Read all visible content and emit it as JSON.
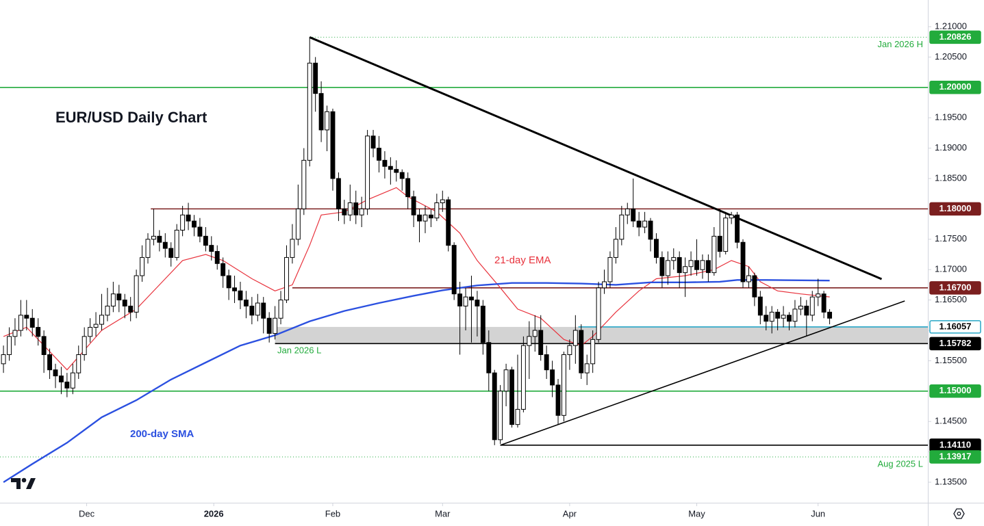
{
  "chart_data": {
    "type": "candlestick",
    "title": "EUR/USD Daily Chart",
    "xlim": [
      -0.6,
      160
    ],
    "ylim": [
      1.13162,
      1.21439
    ],
    "xticks": [
      {
        "value": 14.4,
        "label": "Dec"
      },
      {
        "value": 36.4,
        "label": "2026"
      },
      {
        "value": 57,
        "label": "Feb"
      },
      {
        "value": 76,
        "label": "Mar"
      },
      {
        "value": 98,
        "label": "Apr"
      },
      {
        "value": 120,
        "label": "May"
      },
      {
        "value": 141,
        "label": "Jun"
      }
    ],
    "yticks": [
      {
        "value": 1.135,
        "label": "1.13500"
      },
      {
        "value": 1.14,
        "label": "1.14000"
      },
      {
        "value": 1.145,
        "label": "1.14500"
      },
      {
        "value": 1.15,
        "label": "1.15000"
      },
      {
        "value": 1.155,
        "label": "1.15500"
      },
      {
        "value": 1.16,
        "label": "1.16000"
      },
      {
        "value": 1.165,
        "label": "1.16500"
      },
      {
        "value": 1.17,
        "label": "1.17000"
      },
      {
        "value": 1.175,
        "label": "1.17500"
      },
      {
        "value": 1.18,
        "label": "1.18000"
      },
      {
        "value": 1.185,
        "label": "1.18500"
      },
      {
        "value": 1.19,
        "label": "1.19000"
      },
      {
        "value": 1.195,
        "label": "1.19500"
      },
      {
        "value": 1.2,
        "label": "1.20000"
      },
      {
        "value": 1.205,
        "label": "1.20500"
      },
      {
        "value": 1.21,
        "label": "1.21000"
      }
    ],
    "up_color": "#ffffff",
    "down_color": "#000000",
    "open": [
      1.1545,
      1.156,
      1.159,
      1.16,
      1.1625,
      1.162,
      1.1605,
      1.159,
      1.156,
      1.1535,
      1.1525,
      1.1515,
      1.1505,
      1.153,
      1.156,
      1.159,
      1.1605,
      1.161,
      1.1625,
      1.164,
      1.166,
      1.165,
      1.164,
      1.163,
      1.169,
      1.172,
      1.175,
      1.1755,
      1.1745,
      1.1735,
      1.172,
      1.1765,
      1.179,
      1.178,
      1.177,
      1.1755,
      1.174,
      1.173,
      1.171,
      1.169,
      1.167,
      1.1665,
      1.165,
      1.164,
      1.1625,
      1.1645,
      1.162,
      1.1595,
      1.162,
      1.165,
      1.172,
      1.175,
      1.18,
      1.188,
      1.204,
      1.199,
      1.193,
      1.196,
      1.185,
      1.18,
      1.179,
      1.181,
      1.179,
      1.18,
      1.192,
      1.19,
      1.188,
      1.187,
      1.1865,
      1.186,
      1.185,
      1.182,
      1.179,
      1.178,
      1.179,
      1.1785,
      1.181,
      1.1815,
      1.174,
      1.166,
      1.164,
      1.1655,
      1.165,
      1.164,
      1.158,
      1.153,
      1.142,
      1.15,
      1.1535,
      1.1445,
      1.147,
      1.1575,
      1.159,
      1.16,
      1.156,
      1.1535,
      1.151,
      1.146,
      1.156,
      1.1575,
      1.16,
      1.153,
      1.1545,
      1.1585,
      1.167,
      1.168,
      1.172,
      1.175,
      1.179,
      1.18,
      1.178,
      1.177,
      1.178,
      1.175,
      1.172,
      1.169,
      1.1715,
      1.172,
      1.1695,
      1.1705,
      1.1715,
      1.17,
      1.1715,
      1.1695,
      1.1755,
      1.173,
      1.1785,
      1.179,
      1.1745,
      1.168,
      1.169,
      1.1655,
      1.1625,
      1.1615,
      1.163,
      1.162,
      1.1625,
      1.1615,
      1.1635,
      1.164,
      1.1625,
      1.1655,
      1.166,
      1.163
    ],
    "high": [
      1.1575,
      1.1605,
      1.162,
      1.165,
      1.165,
      1.1635,
      1.162,
      1.16,
      1.157,
      1.1545,
      1.154,
      1.153,
      1.1545,
      1.1575,
      1.1605,
      1.162,
      1.163,
      1.166,
      1.167,
      1.168,
      1.1675,
      1.166,
      1.1655,
      1.17,
      1.174,
      1.176,
      1.18,
      1.1765,
      1.176,
      1.1745,
      1.1775,
      1.1805,
      1.181,
      1.179,
      1.1785,
      1.177,
      1.1755,
      1.174,
      1.172,
      1.17,
      1.169,
      1.168,
      1.1665,
      1.1655,
      1.166,
      1.1655,
      1.163,
      1.164,
      1.1665,
      1.174,
      1.1775,
      1.184,
      1.19,
      1.2083,
      1.205,
      1.201,
      1.197,
      1.1965,
      1.186,
      1.1815,
      1.184,
      1.183,
      1.182,
      1.193,
      1.193,
      1.192,
      1.1895,
      1.1885,
      1.188,
      1.1865,
      1.186,
      1.183,
      1.18,
      1.1805,
      1.18,
      1.1825,
      1.183,
      1.182,
      1.1745,
      1.168,
      1.167,
      1.169,
      1.1665,
      1.165,
      1.16,
      1.1535,
      1.151,
      1.1545,
      1.154,
      1.156,
      1.159,
      1.1615,
      1.1625,
      1.1625,
      1.1575,
      1.155,
      1.152,
      1.1565,
      1.1585,
      1.1625,
      1.161,
      1.156,
      1.16,
      1.168,
      1.17,
      1.173,
      1.177,
      1.1805,
      1.181,
      1.185,
      1.1795,
      1.1795,
      1.1785,
      1.176,
      1.173,
      1.173,
      1.1735,
      1.173,
      1.172,
      1.173,
      1.175,
      1.1725,
      1.1725,
      1.177,
      1.18,
      1.1795,
      1.1795,
      1.1795,
      1.175,
      1.1705,
      1.1695,
      1.1665,
      1.164,
      1.164,
      1.1635,
      1.164,
      1.163,
      1.165,
      1.1655,
      1.165,
      1.1665,
      1.1685,
      1.1665,
      1.1635
    ],
    "low": [
      1.153,
      1.155,
      1.1575,
      1.159,
      1.16,
      1.159,
      1.1575,
      1.153,
      1.152,
      1.1505,
      1.1495,
      1.149,
      1.1495,
      1.152,
      1.155,
      1.158,
      1.159,
      1.16,
      1.1615,
      1.163,
      1.163,
      1.162,
      1.1615,
      1.162,
      1.168,
      1.171,
      1.174,
      1.173,
      1.172,
      1.1705,
      1.1715,
      1.1755,
      1.1765,
      1.1755,
      1.1745,
      1.173,
      1.1715,
      1.17,
      1.167,
      1.165,
      1.1645,
      1.1635,
      1.162,
      1.161,
      1.1615,
      1.1595,
      1.158,
      1.1585,
      1.161,
      1.1645,
      1.171,
      1.174,
      1.179,
      1.187,
      1.196,
      1.191,
      1.1895,
      1.183,
      1.178,
      1.1775,
      1.178,
      1.1775,
      1.177,
      1.179,
      1.1885,
      1.186,
      1.185,
      1.184,
      1.1845,
      1.183,
      1.18,
      1.177,
      1.1745,
      1.176,
      1.177,
      1.178,
      1.1795,
      1.173,
      1.165,
      1.156,
      1.16,
      1.158,
      1.159,
      1.156,
      1.15,
      1.1411,
      1.1413,
      1.1475,
      1.144,
      1.144,
      1.1465,
      1.152,
      1.1565,
      1.155,
      1.152,
      1.149,
      1.1445,
      1.145,
      1.1535,
      1.1545,
      1.152,
      1.151,
      1.153,
      1.158,
      1.166,
      1.167,
      1.171,
      1.174,
      1.1775,
      1.177,
      1.1755,
      1.176,
      1.173,
      1.171,
      1.167,
      1.1675,
      1.17,
      1.167,
      1.1655,
      1.169,
      1.169,
      1.1685,
      1.168,
      1.169,
      1.172,
      1.1725,
      1.1775,
      1.1735,
      1.167,
      1.167,
      1.164,
      1.161,
      1.16,
      1.1595,
      1.16,
      1.1605,
      1.16,
      1.1605,
      1.1625,
      1.159,
      1.1615,
      1.164,
      1.162,
      1.161
    ],
    "close": [
      1.156,
      1.159,
      1.16,
      1.1625,
      1.162,
      1.1605,
      1.159,
      1.156,
      1.1535,
      1.1525,
      1.1515,
      1.1505,
      1.153,
      1.156,
      1.159,
      1.1605,
      1.161,
      1.1625,
      1.164,
      1.166,
      1.165,
      1.164,
      1.163,
      1.169,
      1.172,
      1.175,
      1.1755,
      1.1745,
      1.1735,
      1.172,
      1.1765,
      1.179,
      1.178,
      1.177,
      1.1755,
      1.174,
      1.173,
      1.171,
      1.169,
      1.167,
      1.1665,
      1.165,
      1.164,
      1.1625,
      1.1645,
      1.162,
      1.1595,
      1.162,
      1.165,
      1.172,
      1.175,
      1.18,
      1.188,
      1.204,
      1.199,
      1.193,
      1.196,
      1.185,
      1.18,
      1.179,
      1.181,
      1.179,
      1.18,
      1.192,
      1.19,
      1.188,
      1.187,
      1.1865,
      1.186,
      1.185,
      1.182,
      1.179,
      1.178,
      1.179,
      1.1785,
      1.181,
      1.1815,
      1.174,
      1.166,
      1.164,
      1.1655,
      1.165,
      1.164,
      1.158,
      1.153,
      1.142,
      1.15,
      1.1535,
      1.1445,
      1.147,
      1.1575,
      1.159,
      1.16,
      1.156,
      1.1535,
      1.151,
      1.146,
      1.156,
      1.1575,
      1.16,
      1.153,
      1.1545,
      1.1585,
      1.167,
      1.168,
      1.172,
      1.175,
      1.179,
      1.18,
      1.178,
      1.177,
      1.178,
      1.175,
      1.172,
      1.169,
      1.1715,
      1.172,
      1.1695,
      1.1705,
      1.1715,
      1.17,
      1.1715,
      1.1695,
      1.1755,
      1.173,
      1.1785,
      1.179,
      1.1745,
      1.168,
      1.169,
      1.1655,
      1.1625,
      1.1615,
      1.163,
      1.162,
      1.1625,
      1.1615,
      1.1635,
      1.164,
      1.1625,
      1.1655,
      1.166,
      1.163,
      1.162
    ],
    "lines": [
      {
        "name": "21-day EMA",
        "color": "#e8323c",
        "width": 1.2,
        "x": [
          0,
          4,
          11,
          17,
          23,
          28,
          31,
          35,
          38,
          43,
          47,
          50,
          53,
          55,
          59,
          63,
          68,
          70,
          75,
          79,
          82,
          86,
          89,
          93,
          97,
          100,
          102,
          106,
          110,
          113,
          118,
          123,
          126,
          129,
          131,
          134,
          138,
          143
        ],
        "values": [
          1.159,
          1.1605,
          1.1535,
          1.16,
          1.1635,
          1.1685,
          1.1715,
          1.1725,
          1.1715,
          1.1685,
          1.1665,
          1.1675,
          1.174,
          1.179,
          1.1795,
          1.1815,
          1.1835,
          1.182,
          1.1795,
          1.176,
          1.1715,
          1.167,
          1.1635,
          1.162,
          1.1585,
          1.1575,
          1.159,
          1.163,
          1.1665,
          1.1685,
          1.169,
          1.17,
          1.1715,
          1.1705,
          1.168,
          1.1665,
          1.166,
          1.1655
        ]
      },
      {
        "name": "200-day SMA",
        "color": "#2b50e0",
        "width": 2.4,
        "x": [
          0,
          5,
          11,
          17,
          23,
          29,
          35,
          41,
          47,
          53,
          59,
          65,
          71,
          76,
          82,
          88,
          94,
          100,
          106,
          112,
          118,
          124,
          127,
          132,
          143
        ],
        "values": [
          1.135,
          1.138,
          1.1415,
          1.1457,
          1.1485,
          1.1519,
          1.1547,
          1.1575,
          1.1592,
          1.1615,
          1.1632,
          1.1645,
          1.1657,
          1.1666,
          1.1674,
          1.1678,
          1.1678,
          1.1677,
          1.1675,
          1.1679,
          1.1679,
          1.168,
          1.1683,
          1.1683,
          1.1682
        ]
      }
    ],
    "trendlines": [
      {
        "x": [
          53,
          152
        ],
        "values": [
          1.20826,
          1.16845
        ],
        "color": "#000000",
        "width": 3
      },
      {
        "x": [
          86,
          156
        ],
        "values": [
          1.1411,
          1.16484
        ],
        "color": "#000000",
        "width": 1.6
      }
    ],
    "zone": {
      "x_start": 47,
      "color": "#d3d3d3"
    },
    "levels": [
      {
        "value": 1.20826,
        "label": "1.20826",
        "color": "#22ab3c",
        "badge_text": "#ffffff",
        "dotted": true,
        "x_start": 53,
        "note": "Jan 2026 H"
      },
      {
        "value": 1.2,
        "label": "1.20000",
        "color": "#22ab3c",
        "badge_text": "#ffffff"
      },
      {
        "value": 1.18,
        "label": "1.18000",
        "color": "#7b1f1f",
        "badge_text": "#ffffff",
        "x_start": 25.5
      },
      {
        "value": 1.167,
        "label": "1.16700",
        "color": "#7b1f1f",
        "badge_text": "#ffffff",
        "x_start": 50
      },
      {
        "value": 1.16057,
        "label": "1.16057",
        "color": "#26a6c6",
        "badge_text": "#000000",
        "badge_fill": "#ffffff",
        "x_start": 99.5,
        "zone": true
      },
      {
        "value": 1.15782,
        "label": "1.15782",
        "color": "#000000",
        "badge_text": "#ffffff",
        "x_start": 47,
        "zone": true
      },
      {
        "value": 1.15,
        "label": "1.15000",
        "color": "#22ab3c",
        "badge_text": "#ffffff"
      },
      {
        "value": 1.1411,
        "label": "1.14110",
        "color": "#000000",
        "badge_text": "#ffffff",
        "x_start": 86
      },
      {
        "value": 1.13917,
        "label": "1.13917",
        "color": "#22ab3c",
        "badge_text": "#ffffff",
        "dotted": true,
        "note": "Aug 2025 L"
      }
    ],
    "annotations": [
      "Jan 2026 L"
    ]
  }
}
